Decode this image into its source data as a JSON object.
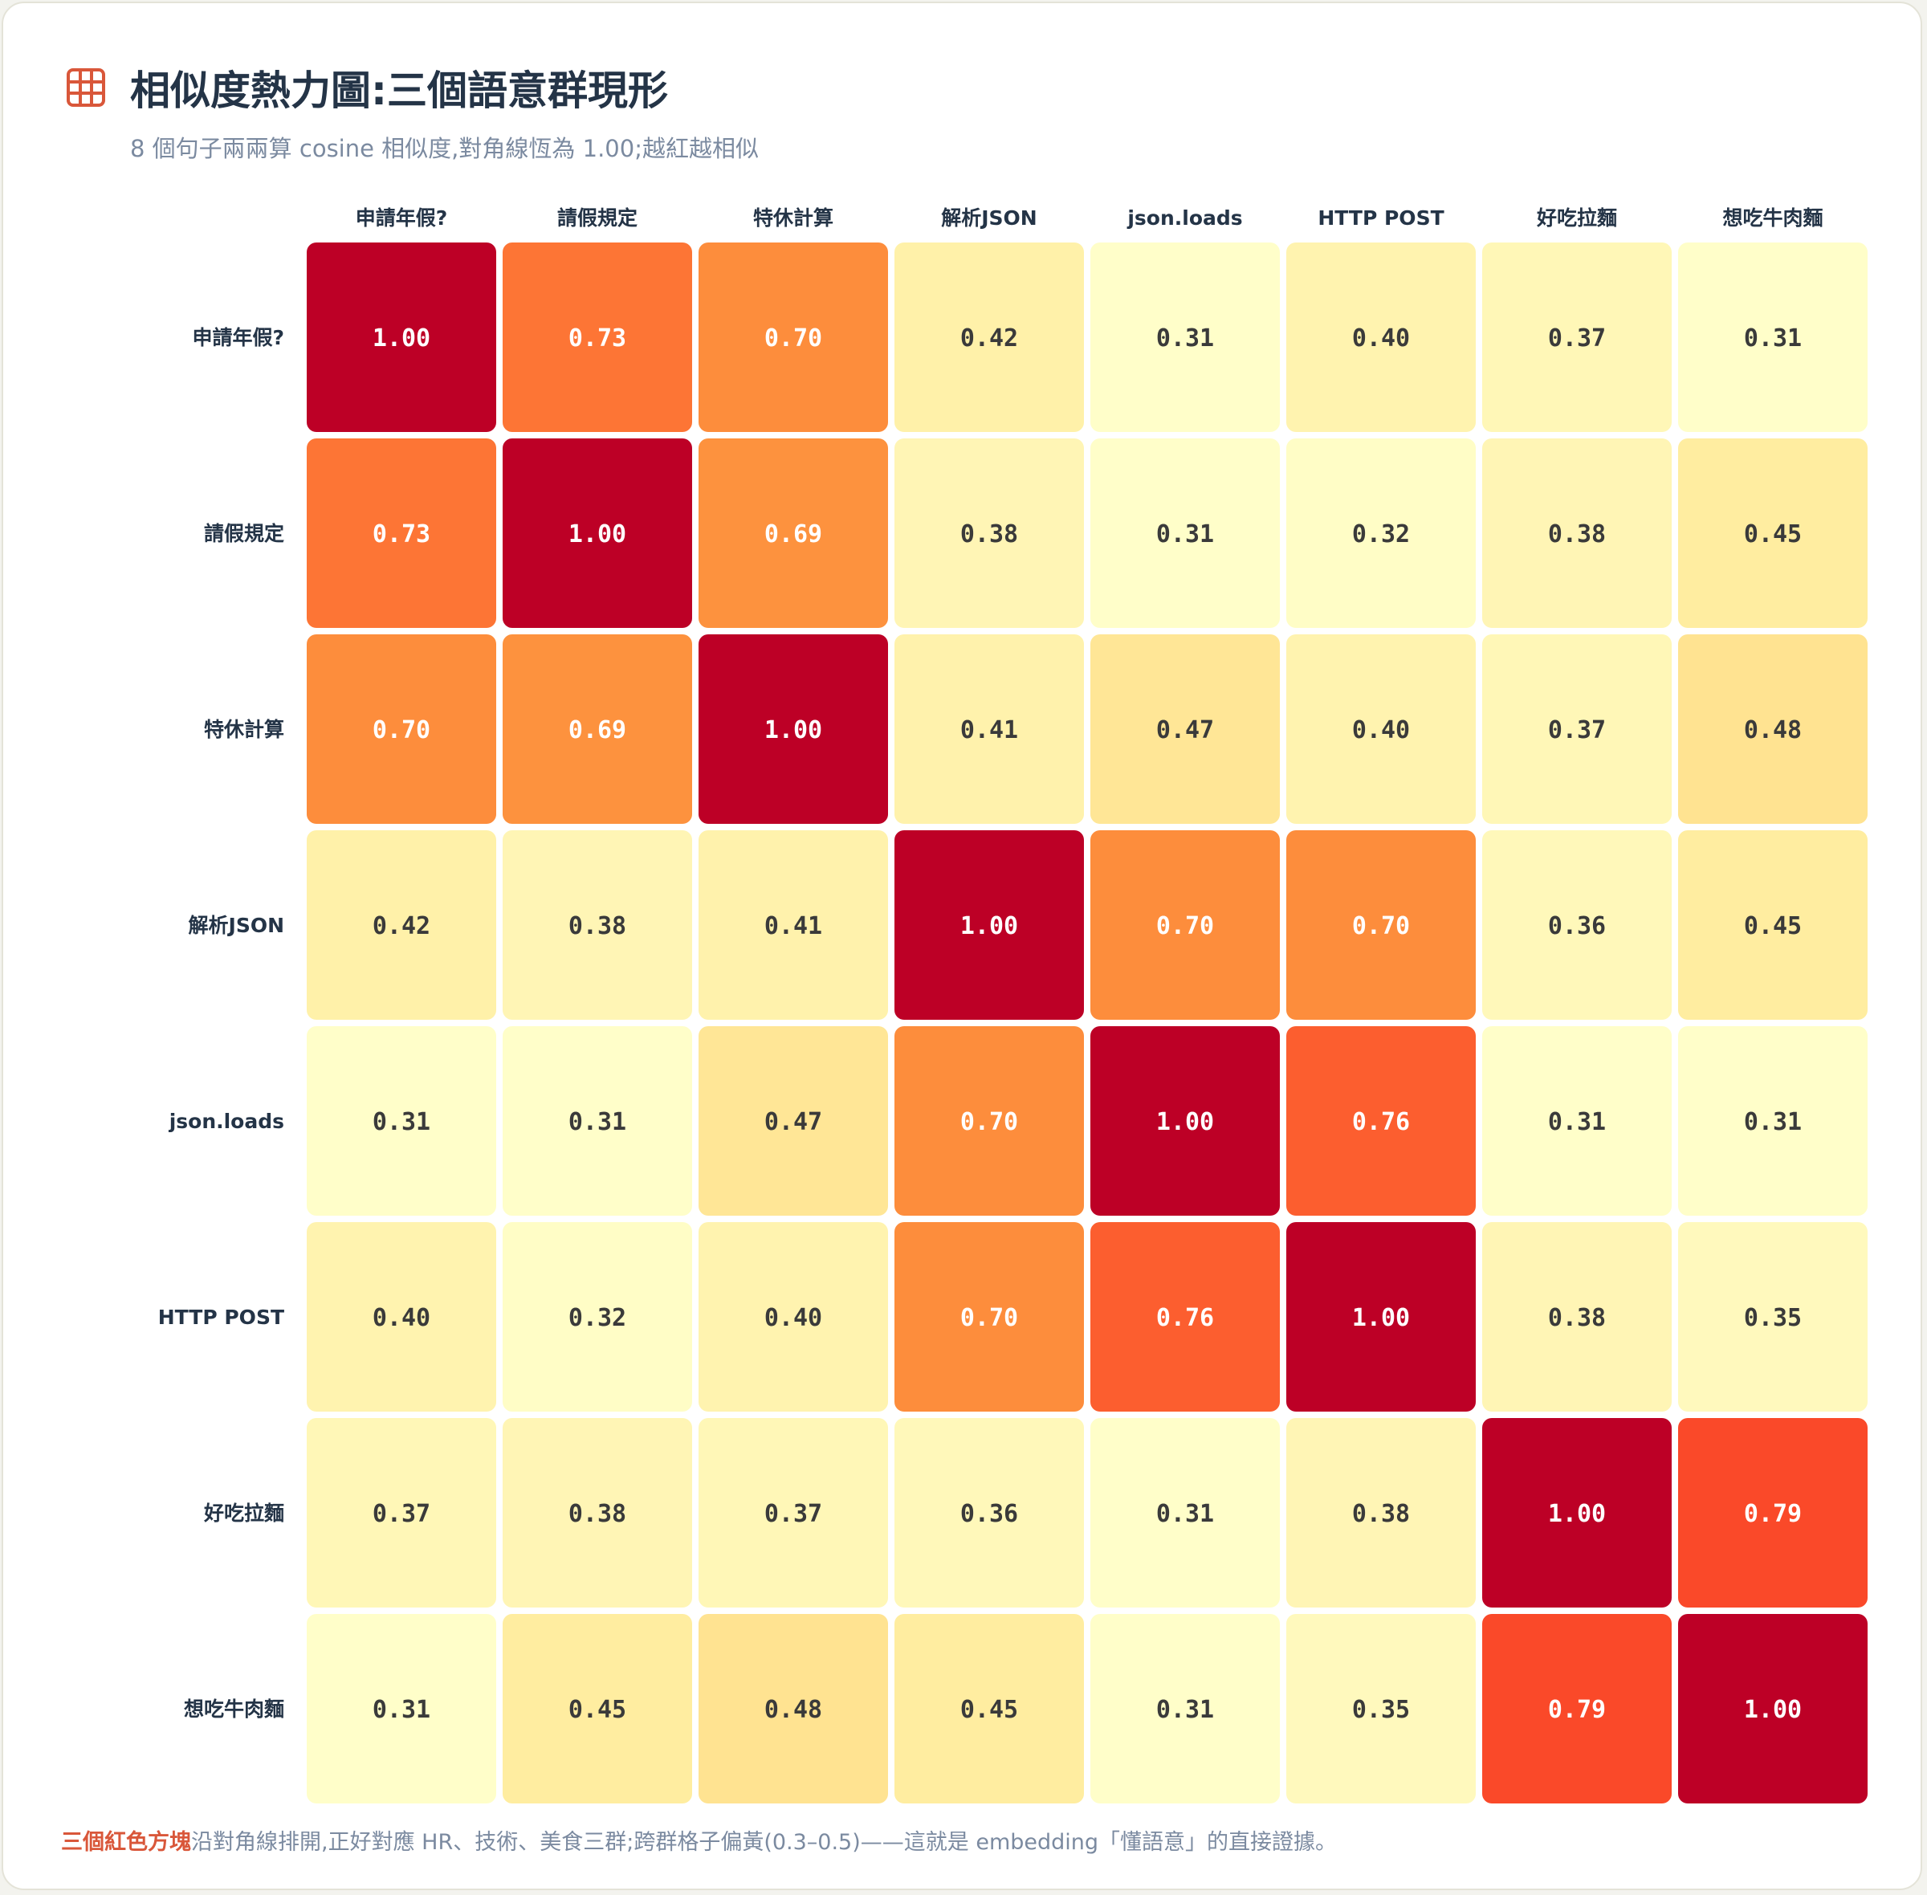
{
  "header": {
    "title": "相似度熱力圖:三個語意群現形",
    "subtitle": "8 個句子兩兩算 cosine 相似度,對角線恆為 1.00;越紅越相似",
    "icon": "grid-icon"
  },
  "footer": {
    "highlight": "三個紅色方塊",
    "text": "沿對角線排開,正好對應 HR、技術、美食三群;跨群格子偏黃(0.3–0.5)——這就是 embedding「懂語意」的直接證據。"
  },
  "colors": {
    "title": "#243447",
    "subtitle": "#7b8aa0",
    "highlight": "#d9573a",
    "scale": [
      "#ffffcc",
      "#ffeda0",
      "#feb24c",
      "#fd8d3c",
      "#fc4e2a",
      "#e31a1c",
      "#bd0026"
    ]
  },
  "chart_data": {
    "type": "heatmap",
    "title": "相似度熱力圖:三個語意群現形",
    "x_labels": [
      "申請年假?",
      "請假規定",
      "特休計算",
      "解析JSON",
      "json.loads",
      "HTTP POST",
      "好吃拉麵",
      "想吃牛肉麵"
    ],
    "y_labels": [
      "申請年假?",
      "請假規定",
      "特休計算",
      "解析JSON",
      "json.loads",
      "HTTP POST",
      "好吃拉麵",
      "想吃牛肉麵"
    ],
    "values": [
      [
        1.0,
        0.73,
        0.7,
        0.42,
        0.31,
        0.4,
        0.37,
        0.31
      ],
      [
        0.73,
        1.0,
        0.69,
        0.38,
        0.31,
        0.32,
        0.38,
        0.45
      ],
      [
        0.7,
        0.69,
        1.0,
        0.41,
        0.47,
        0.4,
        0.37,
        0.48
      ],
      [
        0.42,
        0.38,
        0.41,
        1.0,
        0.7,
        0.7,
        0.36,
        0.45
      ],
      [
        0.31,
        0.31,
        0.47,
        0.7,
        1.0,
        0.76,
        0.31,
        0.31
      ],
      [
        0.4,
        0.32,
        0.4,
        0.7,
        0.76,
        1.0,
        0.38,
        0.35
      ],
      [
        0.37,
        0.38,
        0.37,
        0.36,
        0.31,
        0.38,
        1.0,
        0.79
      ],
      [
        0.31,
        0.45,
        0.48,
        0.45,
        0.31,
        0.35,
        0.79,
        1.0
      ]
    ],
    "value_format": "2 decimals",
    "colorscale": "YlOrRd"
  }
}
